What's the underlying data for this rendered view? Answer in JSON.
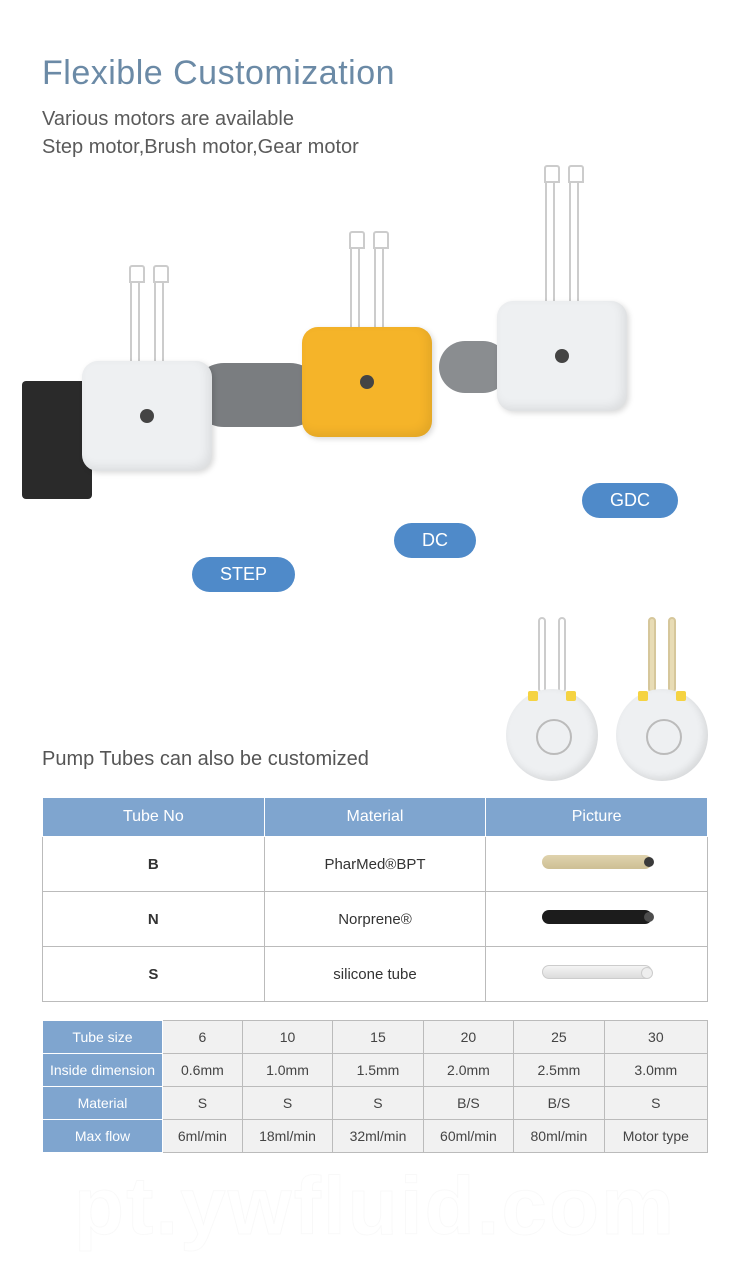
{
  "header": {
    "title": "Flexible Customization",
    "subtitle_line1": "Various motors are available",
    "subtitle_line2": "Step motor,Brush motor,Gear motor"
  },
  "pills": {
    "step": "STEP",
    "dc": "DC",
    "gdc": "GDC"
  },
  "colors": {
    "title": "#6b8aa6",
    "pill_bg": "#4f8ac9",
    "table_header_bg": "#7fa5cf",
    "head_yellow": "#f5b429",
    "head_white": "#eef0f2"
  },
  "section2_title": "Pump Tubes can also be customized",
  "table1": {
    "headers": [
      "Tube No",
      "Material",
      "Picture"
    ],
    "rows": [
      {
        "no": "B",
        "material": "PharMed®BPT",
        "sample": "beige"
      },
      {
        "no": "N",
        "material": "Norprene®",
        "sample": "black"
      },
      {
        "no": "S",
        "material": "silicone tube",
        "sample": "white"
      }
    ]
  },
  "table2": {
    "row_headers": [
      "Tube size",
      "Inside dimension",
      "Material",
      "Max flow"
    ],
    "columns": [
      {
        "size": "6",
        "inside": "0.6mm",
        "material": "S",
        "maxflow": "6ml/min"
      },
      {
        "size": "10",
        "inside": "1.0mm",
        "material": "S",
        "maxflow": "18ml/min"
      },
      {
        "size": "15",
        "inside": "1.5mm",
        "material": "S",
        "maxflow": "32ml/min"
      },
      {
        "size": "20",
        "inside": "2.0mm",
        "material": "B/S",
        "maxflow": "60ml/min"
      },
      {
        "size": "25",
        "inside": "2.5mm",
        "material": "B/S",
        "maxflow": "80ml/min"
      },
      {
        "size": "30",
        "inside": "3.0mm",
        "material": "S",
        "maxflow": "Motor type"
      }
    ]
  },
  "watermark": "pt.ywfluid.com"
}
